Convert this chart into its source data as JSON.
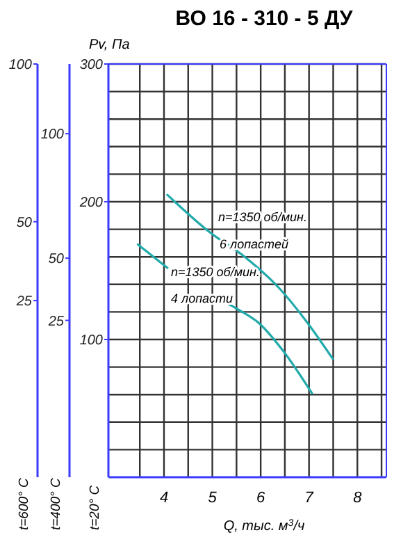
{
  "chart_data": {
    "type": "line",
    "title": "ВО 16 - 310 - 5 ДУ",
    "xlabel": "Q, тыс. м$^{3}$/ч",
    "ylabel": "Pv, Па",
    "y2label": "t=600° C",
    "y3label": "t=400° C",
    "annotations": [
      "t=20° C",
      "n=1350 об/мин.",
      "6 лопастей",
      "n=1350 об/мин.",
      "4 лопасти"
    ],
    "xlim": [
      2.85,
      8.6
    ],
    "xticks": [
      {
        "value": 3.5,
        "label": null
      },
      4,
      {
        "value": 4.5,
        "label": null
      },
      5,
      {
        "value": 5.5,
        "label": null
      },
      6,
      {
        "value": 6.5,
        "label": null
      },
      7,
      {
        "value": 7.5,
        "label": null
      },
      8,
      {
        "value": 8.5,
        "label": null
      }
    ],
    "ylim": [
      0,
      300
    ],
    "yticks": [
      {
        "value": 20,
        "label": null
      },
      {
        "value": 40,
        "label": null
      },
      {
        "value": 60,
        "label": null
      },
      {
        "value": 80,
        "label": null
      },
      100,
      {
        "value": 120,
        "label": null
      },
      {
        "value": 140,
        "label": null
      },
      {
        "value": 160,
        "label": null
      },
      {
        "value": 180,
        "label": null
      },
      200,
      {
        "value": 220,
        "label": null
      },
      {
        "value": 240,
        "label": null
      },
      {
        "value": 260,
        "label": null
      },
      {
        "value": 280,
        "label": null
      },
      300
    ],
    "y2lim": [
      -31,
      100
    ],
    "y2ticks": [
      100,
      50,
      25
    ],
    "y3lim": [
      -38,
      128
    ],
    "y3ticks": [
      100,
      50,
      25
    ],
    "grid": true,
    "series": [
      {
        "color": "#22aaaa",
        "x": [
          4.07,
          4.94,
          5.67,
          6.39,
          6.97,
          7.49
        ],
        "values": [
          205,
          178,
          160,
          137,
          112,
          86
        ]
      },
      {
        "color": "#22aaaa",
        "x": [
          3.46,
          4.07,
          4.5,
          5.0,
          5.52,
          5.96,
          6.48,
          7.06
        ],
        "values": [
          169,
          152,
          null,
          132,
          122,
          112,
          91,
          61
        ]
      }
    ]
  }
}
